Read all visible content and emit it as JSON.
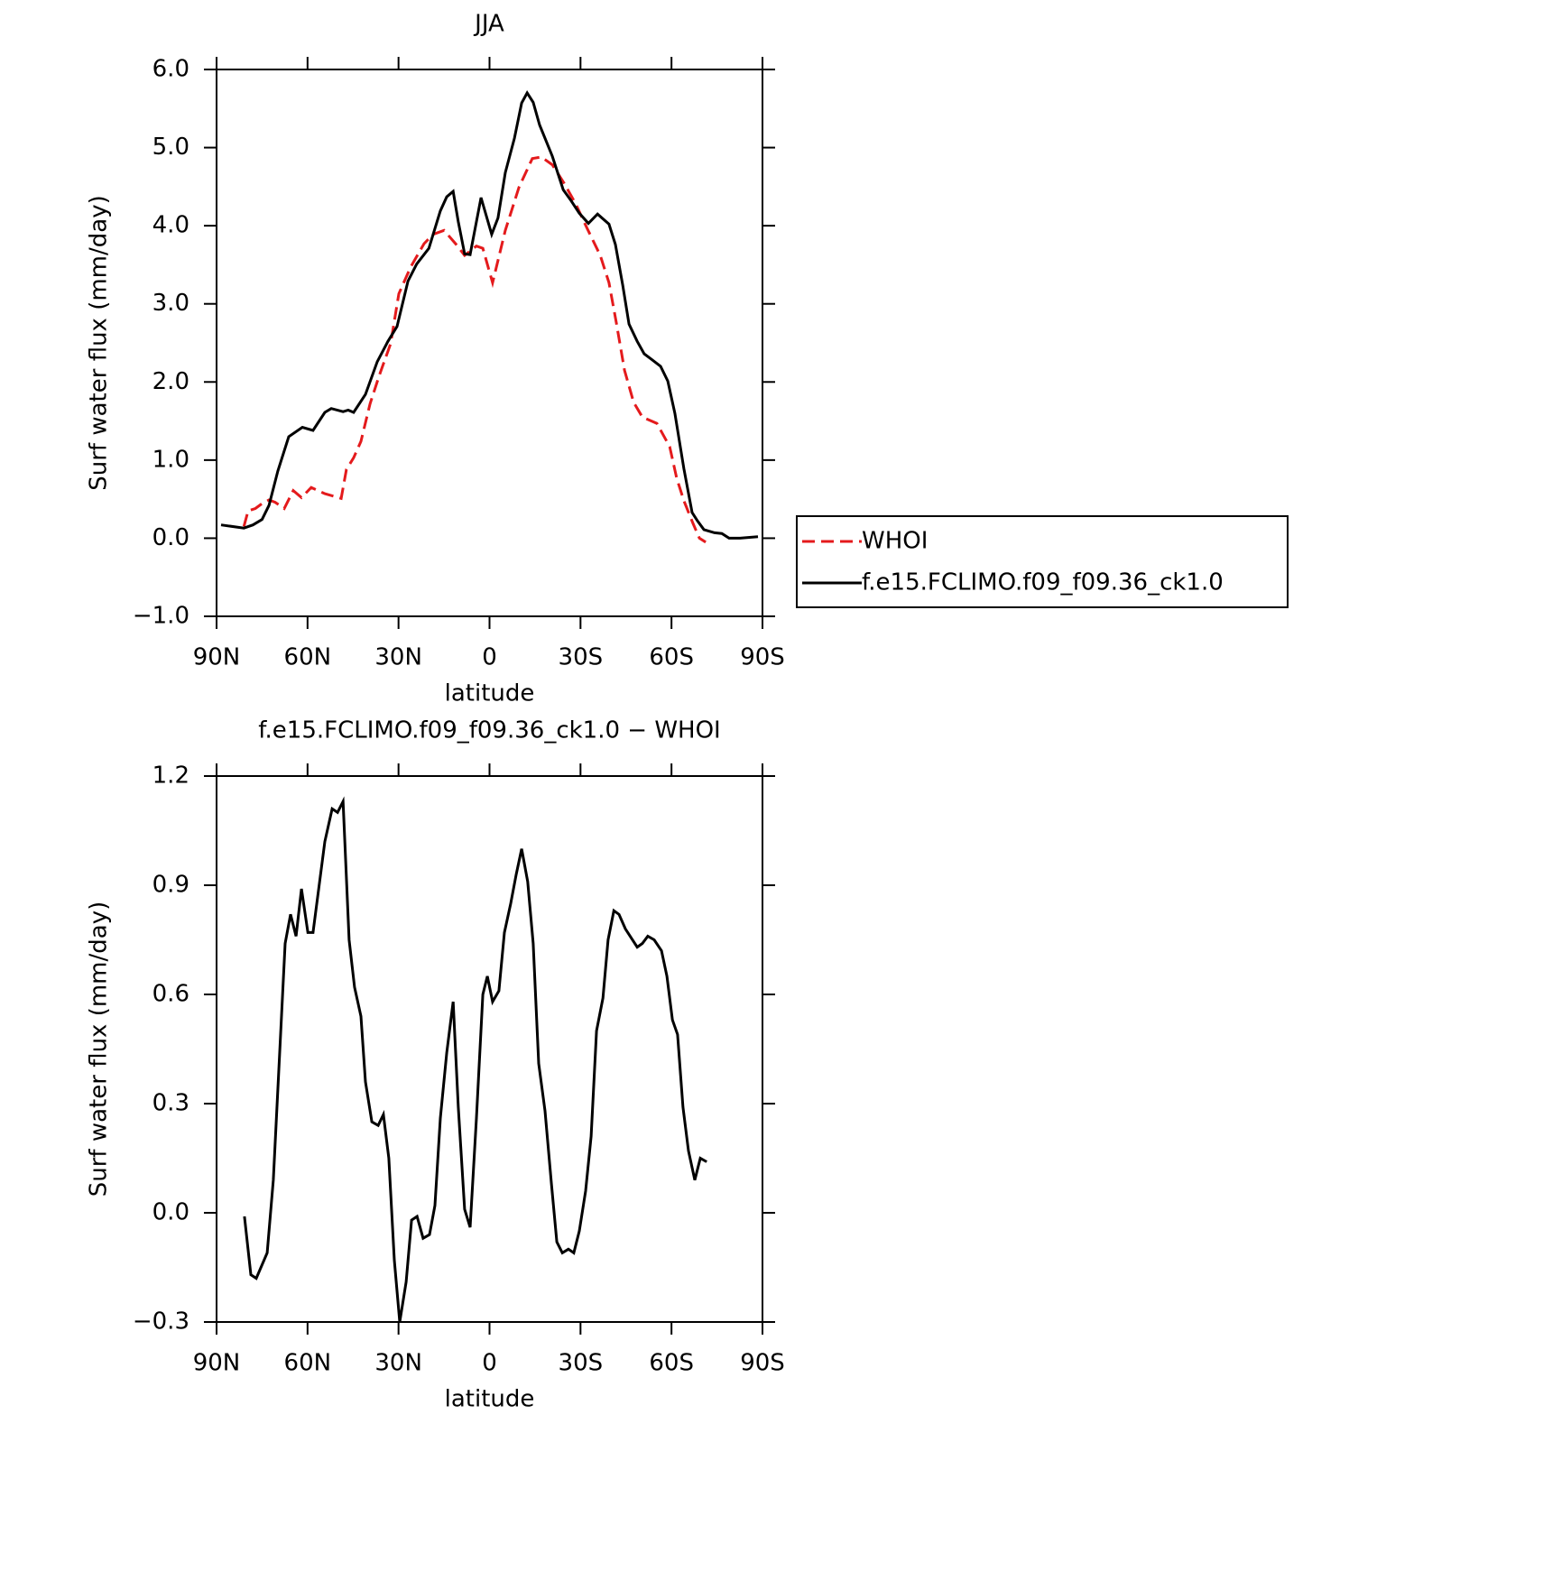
{
  "chart_data": [
    {
      "type": "line",
      "title": "JJA",
      "xlabel": "latitude",
      "ylabel": "Surf water flux (mm/day)",
      "xlim": [
        90,
        -90
      ],
      "xticks": [
        {
          "value": 90,
          "label": "90N"
        },
        {
          "value": 60,
          "label": "60N"
        },
        {
          "value": 30,
          "label": "30N"
        },
        0,
        {
          "value": -30,
          "label": "30S"
        },
        {
          "value": -60,
          "label": "60S"
        },
        {
          "value": -90,
          "label": "90S"
        }
      ],
      "ylim": [
        -1,
        6
      ],
      "yticks": [
        {
          "value": -1,
          "label": "−1.0"
        },
        {
          "value": 0,
          "label": "0.0"
        },
        {
          "value": 1,
          "label": "1.0"
        },
        {
          "value": 2,
          "label": "2.0"
        },
        {
          "value": 3,
          "label": "3.0"
        },
        {
          "value": 4,
          "label": "4.0"
        },
        {
          "value": 5,
          "label": "5.0"
        },
        {
          "value": 6,
          "label": "6.0"
        }
      ],
      "legend": "right",
      "series": [
        {
          "name": "WHOI",
          "color": "#e41a1c",
          "dashed": true,
          "x": [
            81,
            79.6,
            77.2,
            75.1,
            72.7,
            70.7,
            67.7,
            64.7,
            62,
            58.8,
            54.3,
            48.9,
            47.2,
            44.8,
            42.4,
            39.4,
            36.4,
            32.6,
            29.9,
            26,
            21.6,
            18.6,
            15,
            11.2,
            8.2,
            4.3,
            2.2,
            -1,
            -5.2,
            -9.7,
            -14.1,
            -17.1,
            -20.7,
            -24.5,
            -28.4,
            -32,
            -36.5,
            -39.4,
            -41.8,
            -44.5,
            -47.5,
            -50.4,
            -55.2,
            -59.4,
            -61.7,
            -64.1,
            -67.1,
            -69.2,
            -71.3
          ],
          "values": [
            0.15,
            0.35,
            0.38,
            0.44,
            0.49,
            0.46,
            0.38,
            0.61,
            0.52,
            0.65,
            0.57,
            0.51,
            0.88,
            1.03,
            1.24,
            1.72,
            2.08,
            2.49,
            3.13,
            3.47,
            3.77,
            3.89,
            3.94,
            3.77,
            3.62,
            3.74,
            3.71,
            3.27,
            3.94,
            4.49,
            4.86,
            4.88,
            4.78,
            4.55,
            4.28,
            3.98,
            3.62,
            3.27,
            2.76,
            2.15,
            1.74,
            1.55,
            1.47,
            1.17,
            0.77,
            0.48,
            0.19,
            0.0,
            -0.05
          ]
        },
        {
          "name": "f.e15.FCLIMO.f09_f09.36_ck1.0",
          "color": "#000000",
          "dashed": false,
          "x": [
            88.5,
            81,
            78,
            75,
            72.7,
            69.8,
            66.2,
            61.7,
            58.2,
            54.3,
            52.2,
            48.3,
            46.6,
            44.8,
            40.9,
            37,
            33.5,
            30.5,
            26.9,
            24,
            20,
            16.2,
            14.1,
            12,
            10.3,
            8.2,
            6.4,
            2.8,
            -0.7,
            -2.8,
            -5.2,
            -8.2,
            -10.6,
            -12.4,
            -14.4,
            -16.5,
            -20.7,
            -24.3,
            -26.9,
            -29.6,
            -32.6,
            -35.6,
            -39.4,
            -41.5,
            -43.9,
            -46,
            -48.7,
            -51,
            -53.4,
            -56.4,
            -58.8,
            -61.1,
            -64.1,
            -66.8,
            -68.6,
            -70.7,
            -74.2,
            -76.6,
            -79,
            -82.6,
            -88.5
          ],
          "values": [
            0.17,
            0.13,
            0.17,
            0.24,
            0.42,
            0.86,
            1.3,
            1.42,
            1.38,
            1.61,
            1.66,
            1.62,
            1.64,
            1.61,
            1.84,
            2.26,
            2.52,
            2.71,
            3.29,
            3.51,
            3.71,
            4.19,
            4.37,
            4.44,
            4.05,
            3.64,
            3.63,
            4.36,
            3.89,
            4.1,
            4.68,
            5.12,
            5.57,
            5.7,
            5.58,
            5.29,
            4.89,
            4.46,
            4.32,
            4.16,
            4.03,
            4.15,
            4.02,
            3.76,
            3.24,
            2.74,
            2.52,
            2.36,
            2.29,
            2.2,
            2.01,
            1.6,
            0.89,
            0.33,
            0.22,
            0.11,
            0.07,
            0.06,
            0.0,
            0.0,
            0.02
          ]
        }
      ]
    },
    {
      "type": "line",
      "title": "f.e15.FCLIMO.f09_f09.36_ck1.0 − WHOI",
      "xlabel": "latitude",
      "ylabel": "Surf water flux (mm/day)",
      "xlim": [
        90,
        -90
      ],
      "xticks": [
        {
          "value": 90,
          "label": "90N"
        },
        {
          "value": 60,
          "label": "60N"
        },
        {
          "value": 30,
          "label": "30N"
        },
        0,
        {
          "value": -30,
          "label": "30S"
        },
        {
          "value": -60,
          "label": "60S"
        },
        {
          "value": -90,
          "label": "90S"
        }
      ],
      "ylim": [
        -0.3,
        1.2
      ],
      "yticks": [
        {
          "value": -0.3,
          "label": "−0.3"
        },
        {
          "value": 0,
          "label": "0.0"
        },
        0.3,
        0.6,
        0.9,
        1.2
      ],
      "series": [
        {
          "color": "#000000",
          "dashed": false,
          "x": [
            80.8,
            78.7,
            76.9,
            73.3,
            71.3,
            67.4,
            65.6,
            63.8,
            62,
            59.9,
            58.2,
            54.3,
            51.9,
            50.1,
            48.3,
            46.3,
            44.5,
            42.4,
            40.9,
            38.8,
            36.7,
            35,
            33.2,
            31.4,
            29.6,
            27.5,
            25.7,
            23.9,
            21.9,
            19.8,
            18,
            16.2,
            14.1,
            12,
            10.3,
            8.2,
            6.4,
            4.3,
            2.2,
            0.7,
            -1,
            -3.1,
            -4.9,
            -7,
            -8.8,
            -10.6,
            -12.6,
            -14.4,
            -16.2,
            -18.3,
            -20.4,
            -22.2,
            -24,
            -26,
            -27.8,
            -29.6,
            -31.7,
            -33.5,
            -35.3,
            -37.4,
            -39.1,
            -41,
            -42.7,
            -44.8,
            -48.7,
            -50.4,
            -52.2,
            -54.3,
            -56.7,
            -58.5,
            -60.3,
            -62,
            -63.8,
            -65.6,
            -67.7,
            -69.5,
            -71.6
          ],
          "values": [
            -0.01,
            -0.17,
            -0.18,
            -0.11,
            0.09,
            0.74,
            0.82,
            0.76,
            0.89,
            0.77,
            0.77,
            1.02,
            1.11,
            1.1,
            1.13,
            0.75,
            0.62,
            0.54,
            0.36,
            0.25,
            0.24,
            0.27,
            0.15,
            -0.13,
            -0.3,
            -0.19,
            -0.02,
            -0.01,
            -0.07,
            -0.06,
            0.02,
            0.26,
            0.44,
            0.58,
            0.29,
            0.01,
            -0.04,
            0.26,
            0.6,
            0.65,
            0.58,
            0.61,
            0.77,
            0.85,
            0.93,
            1.0,
            0.91,
            0.74,
            0.41,
            0.28,
            0.08,
            -0.08,
            -0.11,
            -0.1,
            -0.11,
            -0.05,
            0.06,
            0.21,
            0.5,
            0.59,
            0.75,
            0.83,
            0.82,
            0.78,
            0.73,
            0.74,
            0.76,
            0.75,
            0.72,
            0.65,
            0.53,
            0.49,
            0.29,
            0.17,
            0.09,
            0.15,
            0.14
          ]
        }
      ]
    }
  ]
}
